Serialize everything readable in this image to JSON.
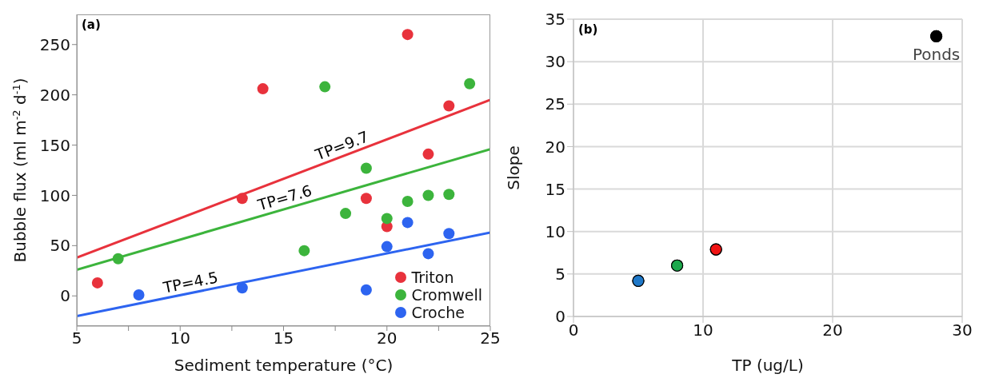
{
  "chart_data": [
    {
      "type": "scatter",
      "xlabel": "Sediment temperature (°C)",
      "ylabel": "Bubble flux (ml m$^{-2}$ d$^{-1}$)",
      "xlim": [
        5,
        25
      ],
      "xticks": [
        5,
        {
          "value": 7.5,
          "label": null
        },
        10,
        {
          "value": 12.5,
          "label": null
        },
        15,
        {
          "value": 17.5,
          "label": null
        },
        20,
        {
          "value": 22.5,
          "label": null
        },
        25
      ],
      "ylim": [
        -30,
        280
      ],
      "yticks": [
        0,
        50,
        100,
        150,
        200,
        250
      ],
      "grid": false,
      "legend": "bottom right",
      "marker": "circle",
      "series": [
        {
          "name": "Triton",
          "color": "#e8323c",
          "x": [
            6,
            13,
            14,
            19,
            20,
            21,
            22,
            23
          ],
          "values": [
            13,
            97,
            206,
            97,
            69,
            260,
            141,
            189
          ]
        },
        {
          "name": "Cromwell",
          "color": "#3cb43c",
          "x": [
            7,
            16,
            17,
            18,
            19,
            20,
            21,
            22,
            23,
            24
          ],
          "values": [
            37,
            45,
            208,
            82,
            127,
            77,
            94,
            100,
            101,
            211
          ]
        },
        {
          "name": "Croche",
          "color": "#2d64f0",
          "x": [
            8,
            13,
            19,
            20,
            21,
            22,
            23
          ],
          "values": [
            1,
            8,
            6,
            49,
            73,
            42,
            62
          ]
        },
        {
          "type": "line",
          "marker": "none",
          "color": "#e8323c",
          "x": [
            5,
            25
          ],
          "values": [
            38,
            195
          ]
        },
        {
          "type": "line",
          "marker": "none",
          "color": "#3cb43c",
          "x": [
            5,
            25
          ],
          "values": [
            26,
            146
          ]
        },
        {
          "type": "line",
          "marker": "none",
          "color": "#2d64f0",
          "x": [
            5,
            25
          ],
          "values": [
            -20,
            63
          ]
        }
      ],
      "annotations": [
        "(a)",
        {
          "text": "TP=9.7",
          "x": 18,
          "y": 140
        },
        {
          "text": "TP=7.6",
          "x": 15.2,
          "y": 88
        },
        {
          "text": "TP=4.5",
          "x": 10.6,
          "y": 3.5
        }
      ]
    },
    {
      "type": "scatter",
      "xlabel": "TP (ug/L)",
      "ylabel": "Slope",
      "xlim": [
        0,
        30
      ],
      "xticks": [
        0,
        10,
        20,
        30
      ],
      "ylim": [
        0,
        35
      ],
      "yticks": [
        0,
        5,
        10,
        15,
        20,
        25,
        30,
        35
      ],
      "grid": true,
      "marker": "circle",
      "series": [
        {
          "x": [
            5,
            8,
            11,
            28
          ],
          "values": [
            4.2,
            6,
            7.9,
            33
          ],
          "colors": [
            "#1f78c8",
            "#1ca84c",
            "#f01414",
            "#000000"
          ]
        }
      ],
      "annotations": [
        "(b)",
        {
          "text": "Ponds",
          "x": 28,
          "y": 33
        }
      ]
    }
  ]
}
